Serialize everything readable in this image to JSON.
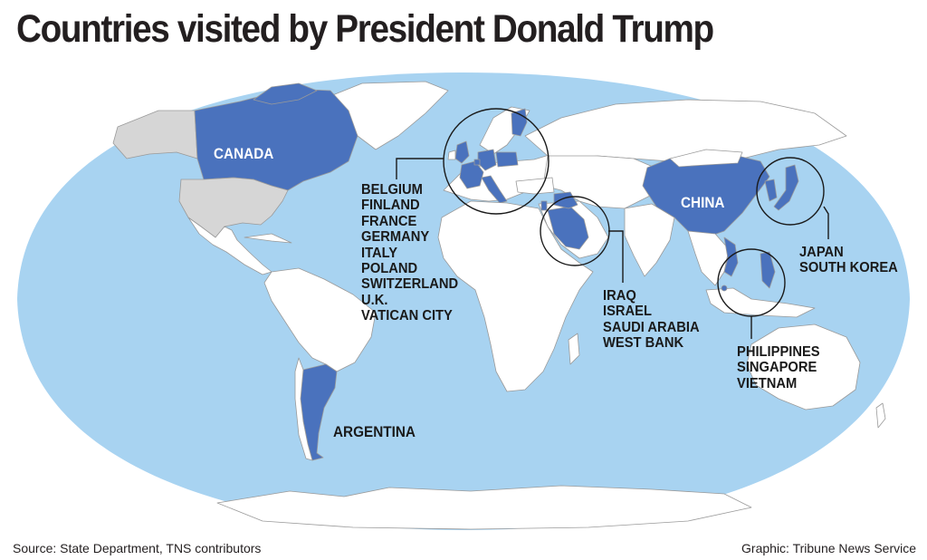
{
  "title": "Countries visited by President Donald Trump",
  "colors": {
    "ocean": "#a8d3f1",
    "land": "#ffffff",
    "visited": "#4a72bd",
    "usa": "#d6d6d6",
    "border": "#9a9a9a",
    "callout": "#1a1a1a"
  },
  "visited_countries": [
    "Canada",
    "China",
    "Argentina",
    "Belgium",
    "Finland",
    "France",
    "Germany",
    "Italy",
    "Poland",
    "Switzerland",
    "U.K.",
    "Vatican City",
    "Iraq",
    "Israel",
    "Saudi Arabia",
    "West Bank",
    "Japan",
    "South Korea",
    "Philippines",
    "Singapore",
    "Vietnam"
  ],
  "labels": {
    "canada": "CANADA",
    "china": "CHINA",
    "argentina": "ARGENTINA"
  },
  "groups": {
    "europe": [
      "BELGIUM",
      "FINLAND",
      "FRANCE",
      "GERMANY",
      "ITALY",
      "POLAND",
      "SWITZERLAND",
      "U.K.",
      "VATICAN CITY"
    ],
    "middle_east": [
      "IRAQ",
      "ISRAEL",
      "SAUDI ARABIA",
      "WEST BANK"
    ],
    "east_asia": [
      "JAPAN",
      "SOUTH KOREA"
    ],
    "southeast_asia": [
      "PHILIPPINES",
      "SINGAPORE",
      "VIETNAM"
    ]
  },
  "footer": {
    "source": "Source: State Department, TNS contributors",
    "credit": "Graphic: Tribune News Service"
  }
}
